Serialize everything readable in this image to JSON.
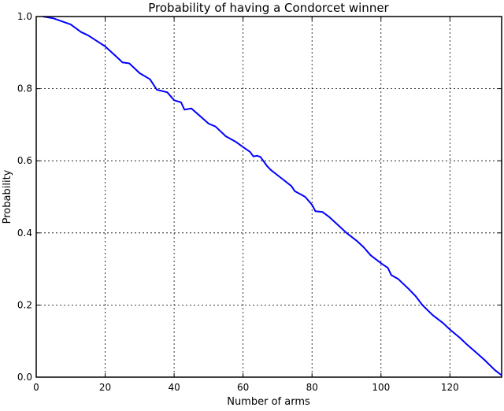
{
  "chart_data": {
    "type": "line",
    "title": "Probability of having a Condorcet winner",
    "xlabel": "Number of arms",
    "ylabel": "Probability",
    "xlim": [
      0,
      135
    ],
    "ylim": [
      0.0,
      1.0
    ],
    "xticks": [
      0,
      20,
      40,
      60,
      80,
      100,
      120
    ],
    "xtick_labels": [
      "0",
      "20",
      "40",
      "60",
      "80",
      "100",
      "120"
    ],
    "yticks": [
      0.0,
      0.2,
      0.4,
      0.6,
      0.8,
      1.0
    ],
    "ytick_labels": [
      "0.0",
      "0.2",
      "0.4",
      "0.6",
      "0.8",
      "1.0"
    ],
    "grid": true,
    "line_color": "#0000ff",
    "series": [
      {
        "x": [
          2,
          5,
          10,
          13,
          15,
          20,
          24,
          25,
          27,
          30,
          33,
          35,
          38,
          40,
          42,
          43,
          45,
          48,
          50,
          52,
          55,
          58,
          60,
          62,
          63,
          64,
          65,
          67,
          68,
          70,
          72,
          74,
          75,
          78,
          80,
          81,
          83,
          85,
          88,
          90,
          93,
          95,
          97,
          100,
          102,
          103,
          105,
          108,
          110,
          112,
          115,
          118,
          120,
          123,
          125,
          128,
          130,
          133,
          135
        ],
        "y": [
          1.0,
          0.995,
          0.978,
          0.957,
          0.948,
          0.917,
          0.882,
          0.873,
          0.87,
          0.843,
          0.826,
          0.797,
          0.79,
          0.768,
          0.762,
          0.742,
          0.745,
          0.72,
          0.703,
          0.695,
          0.668,
          0.652,
          0.638,
          0.625,
          0.612,
          0.614,
          0.611,
          0.585,
          0.575,
          0.56,
          0.545,
          0.53,
          0.516,
          0.5,
          0.478,
          0.46,
          0.458,
          0.444,
          0.418,
          0.4,
          0.378,
          0.36,
          0.338,
          0.316,
          0.303,
          0.283,
          0.272,
          0.245,
          0.225,
          0.2,
          0.172,
          0.15,
          0.132,
          0.108,
          0.09,
          0.065,
          0.048,
          0.02,
          0.005
        ]
      }
    ]
  }
}
